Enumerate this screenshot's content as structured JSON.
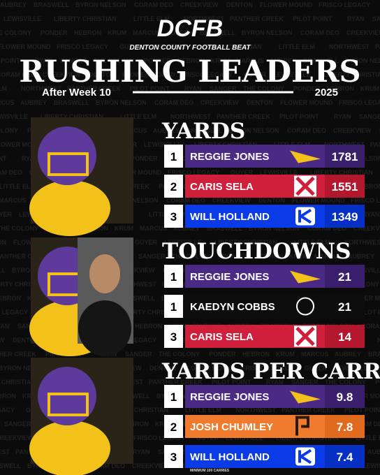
{
  "header": {
    "logo": "DCFB",
    "brand": "DENTON COUNTY FOOTBALL BEAT",
    "title": "RUSHING LEADERS",
    "subtitle": "After Week 10",
    "year": "2025"
  },
  "background_words": [
    "AUBREY",
    "BRASWELL",
    "BYRON NELSON",
    "CORAM DEO",
    "CREEKVIEW",
    "DENTON",
    "FLOWER MOUND",
    "FRISCO LEGACY",
    "GUYER",
    "LEWISVILLE",
    "LIBERTY CHRISTIAN",
    "LITTLE ELM",
    "NORTHWEST",
    "PANTHER CREEK",
    "PILOT POINT",
    "RYAN",
    "SANGER",
    "THE COLONY",
    "PONDER",
    "HEBRON",
    "KRUM",
    "MARCUS"
  ],
  "sections": [
    {
      "title": "YARDS",
      "rows": [
        {
          "rank": 1,
          "name": "REGGIE JONES",
          "value": 1781,
          "color": "#4a2a84",
          "dark": "#3a1f6c",
          "logo": "sanger"
        },
        {
          "rank": 2,
          "name": "CARIS SELA",
          "value": 1551,
          "color": "#cf1f3a",
          "dark": "#b3172e",
          "logo": "texans"
        },
        {
          "rank": 3,
          "name": "WILL HOLLAND",
          "value": 1349,
          "color": "#0b3be6",
          "dark": "#0630c4",
          "logo": "k"
        }
      ]
    },
    {
      "title": "TOUCHDOWNS",
      "rows": [
        {
          "rank": 1,
          "name": "REGGIE JONES",
          "value": 21,
          "color": "#4a2a84",
          "dark": "#3a1f6c",
          "logo": "sanger"
        },
        {
          "rank": 1,
          "name": "KAEDYN COBBS",
          "value": 21,
          "color": "#0d0d0d",
          "dark": "#0d0d0d",
          "logo": "hawk"
        },
        {
          "rank": 3,
          "name": "CARIS SELA",
          "value": 14,
          "color": "#cf1f3a",
          "dark": "#b3172e",
          "logo": "texans"
        }
      ]
    },
    {
      "title": "YARDS PER CARRY",
      "note": "MINIMUM 100 CARRIES",
      "rows": [
        {
          "rank": 1,
          "name": "REGGIE JONES",
          "value": 9.8,
          "color": "#4a2a84",
          "dark": "#3a1f6c",
          "logo": "sanger"
        },
        {
          "rank": 2,
          "name": "JOSH CHUMLEY",
          "value": 7.8,
          "color": "#f07a2e",
          "dark": "#e06a1e",
          "logo": "pp"
        },
        {
          "rank": 3,
          "name": "WILL HOLLAND",
          "value": 7.4,
          "color": "#0b3be6",
          "dark": "#0630c4",
          "logo": "k"
        }
      ]
    }
  ]
}
